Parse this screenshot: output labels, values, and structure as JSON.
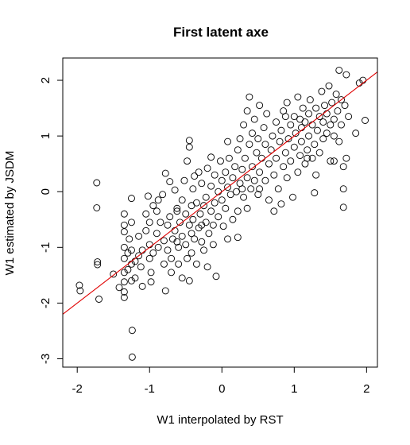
{
  "chart_data": {
    "type": "scatter",
    "title": "First latent axe",
    "xlabel": "W1 interpolated by RST",
    "ylabel": "W1 estimated by JSDM",
    "xlim": [
      -2.2,
      2.15
    ],
    "ylim": [
      -3.15,
      2.4
    ],
    "xticks": [
      -2,
      -1,
      0,
      1,
      2
    ],
    "yticks": [
      -3,
      -2,
      -1,
      0,
      1,
      2
    ],
    "xtick_labels": [
      "-2",
      "-1",
      "0",
      "1",
      "2"
    ],
    "ytick_labels": [
      "-3",
      "-2",
      "-1",
      "0",
      "1",
      "2"
    ],
    "fit_line": {
      "color": "#e00000",
      "intercept": 0.0,
      "slope": 1.0
    },
    "point_style": "open-circle",
    "points": [
      [
        -1.97,
        -1.68
      ],
      [
        -1.96,
        -1.78
      ],
      [
        -1.73,
        0.16
      ],
      [
        -1.73,
        -0.29
      ],
      [
        -1.72,
        -1.26
      ],
      [
        -1.72,
        -1.31
      ],
      [
        -1.7,
        -1.93
      ],
      [
        -1.5,
        -1.48
      ],
      [
        -1.42,
        -1.72
      ],
      [
        -1.35,
        -0.4
      ],
      [
        -1.35,
        -0.6
      ],
      [
        -1.35,
        -0.72
      ],
      [
        -1.35,
        -1.0
      ],
      [
        -1.35,
        -1.2
      ],
      [
        -1.35,
        -1.45
      ],
      [
        -1.35,
        -1.62
      ],
      [
        -1.35,
        -1.8
      ],
      [
        -1.35,
        -1.9
      ],
      [
        -1.25,
        -0.12
      ],
      [
        -1.25,
        -0.55
      ],
      [
        -1.25,
        -1.05
      ],
      [
        -1.25,
        -1.3
      ],
      [
        -1.25,
        -1.6
      ],
      [
        -1.24,
        -2.49
      ],
      [
        -1.24,
        -2.97
      ],
      [
        -1.28,
        -0.85
      ],
      [
        -1.3,
        -1.1
      ],
      [
        -1.3,
        -1.4
      ],
      [
        -1.2,
        -1.25
      ],
      [
        -1.2,
        -1.55
      ],
      [
        -1.15,
        -0.8
      ],
      [
        -1.15,
        -1.15
      ],
      [
        -1.12,
        -1.35
      ],
      [
        -1.1,
        -1.05
      ],
      [
        -1.1,
        -1.7
      ],
      [
        -1.05,
        -0.4
      ],
      [
        -1.05,
        -0.7
      ],
      [
        -1.02,
        -0.08
      ],
      [
        -1.0,
        -0.55
      ],
      [
        -1.0,
        -0.95
      ],
      [
        -1.0,
        -1.2
      ],
      [
        -0.98,
        -1.45
      ],
      [
        -0.98,
        -1.62
      ],
      [
        -0.95,
        -0.25
      ],
      [
        -0.95,
        -1.1
      ],
      [
        -0.9,
        -0.35
      ],
      [
        -0.9,
        -0.75
      ],
      [
        -0.88,
        -1.0
      ],
      [
        -0.85,
        -0.55
      ],
      [
        -0.82,
        -0.05
      ],
      [
        -0.8,
        -0.88
      ],
      [
        -0.8,
        -1.3
      ],
      [
        -0.78,
        -1.78
      ],
      [
        -0.78,
        0.33
      ],
      [
        -0.75,
        -0.6
      ],
      [
        -0.75,
        -1.05
      ],
      [
        -0.72,
        0.18
      ],
      [
        -0.72,
        -0.45
      ],
      [
        -0.7,
        -1.2
      ],
      [
        -0.7,
        -1.45
      ],
      [
        -0.68,
        -0.85
      ],
      [
        -0.65,
        0.03
      ],
      [
        -0.65,
        -0.7
      ],
      [
        -0.62,
        -0.35
      ],
      [
        -0.6,
        -1.0
      ],
      [
        -0.6,
        -1.3
      ],
      [
        -0.58,
        -0.55
      ],
      [
        -0.55,
        -0.15
      ],
      [
        -0.55,
        -0.8
      ],
      [
        -0.55,
        -1.55
      ],
      [
        -0.52,
        0.2
      ],
      [
        -0.5,
        -0.4
      ],
      [
        -0.5,
        -0.95
      ],
      [
        -0.48,
        -1.2
      ],
      [
        -0.45,
        -0.6
      ],
      [
        -0.45,
        -1.6
      ],
      [
        -0.42,
        -0.25
      ],
      [
        -0.42,
        -0.75
      ],
      [
        -0.42,
        -1.1
      ],
      [
        -0.4,
        0.05
      ],
      [
        -0.4,
        -0.5
      ],
      [
        -0.38,
        -0.85
      ],
      [
        -0.35,
        -0.2
      ],
      [
        -0.35,
        -1.3
      ],
      [
        -0.32,
        0.35
      ],
      [
        -0.32,
        -0.65
      ],
      [
        -0.3,
        -0.4
      ],
      [
        -0.28,
        -0.9
      ],
      [
        -0.28,
        0.15
      ],
      [
        -0.25,
        -0.25
      ],
      [
        -0.25,
        -1.05
      ],
      [
        -0.22,
        -0.55
      ],
      [
        -0.22,
        -0.1
      ],
      [
        -0.2,
        -1.35
      ],
      [
        -0.2,
        0.42
      ],
      [
        -0.18,
        -0.75
      ],
      [
        -0.15,
        -0.35
      ],
      [
        -0.15,
        0.1
      ],
      [
        -0.12,
        -0.6
      ],
      [
        -0.12,
        -0.95
      ],
      [
        -0.1,
        0.3
      ],
      [
        -0.1,
        -0.2
      ],
      [
        -0.08,
        -1.52
      ],
      [
        -0.05,
        0.0
      ],
      [
        -0.05,
        -0.45
      ],
      [
        -0.02,
        0.55
      ],
      [
        0.0,
        -0.15
      ],
      [
        0.0,
        0.2
      ],
      [
        0.02,
        -0.62
      ],
      [
        0.05,
        0.35
      ],
      [
        0.05,
        -0.3
      ],
      [
        0.08,
        0.08
      ],
      [
        0.08,
        -0.85
      ],
      [
        0.1,
        0.6
      ],
      [
        0.12,
        -0.05
      ],
      [
        0.15,
        0.25
      ],
      [
        0.15,
        -0.5
      ],
      [
        0.18,
        0.45
      ],
      [
        0.2,
        0.0
      ],
      [
        0.22,
        0.75
      ],
      [
        0.22,
        -0.35
      ],
      [
        0.25,
        0.15
      ],
      [
        0.25,
        0.95
      ],
      [
        0.28,
        0.4
      ],
      [
        0.3,
        -0.1
      ],
      [
        0.3,
        1.2
      ],
      [
        0.32,
        0.6
      ],
      [
        0.35,
        0.25
      ],
      [
        0.35,
        1.45
      ],
      [
        0.35,
        -0.3
      ],
      [
        0.38,
        0.85
      ],
      [
        0.38,
        1.7
      ],
      [
        0.4,
        0.05
      ],
      [
        0.42,
        1.05
      ],
      [
        0.42,
        0.45
      ],
      [
        0.45,
        1.3
      ],
      [
        0.45,
        0.2
      ],
      [
        0.48,
        0.7
      ],
      [
        0.5,
        -0.05
      ],
      [
        0.5,
        0.95
      ],
      [
        0.52,
        1.55
      ],
      [
        0.52,
        0.35
      ],
      [
        0.55,
        0.6
      ],
      [
        0.58,
        1.15
      ],
      [
        0.6,
        0.2
      ],
      [
        0.6,
        0.85
      ],
      [
        0.62,
        1.4
      ],
      [
        0.65,
        0.5
      ],
      [
        0.65,
        -0.15
      ],
      [
        0.68,
        0.75
      ],
      [
        0.7,
        1.0
      ],
      [
        0.72,
        0.3
      ],
      [
        0.75,
        1.25
      ],
      [
        0.75,
        0.6
      ],
      [
        0.78,
        0.05
      ],
      [
        0.8,
        0.9
      ],
      [
        0.82,
        1.1
      ],
      [
        0.85,
        0.45
      ],
      [
        0.85,
        1.45
      ],
      [
        0.88,
        0.7
      ],
      [
        0.9,
        0.25
      ],
      [
        0.9,
        1.6
      ],
      [
        0.92,
        0.95
      ],
      [
        0.95,
        1.2
      ],
      [
        0.95,
        0.55
      ],
      [
        0.98,
        -0.1
      ],
      [
        1.0,
        0.8
      ],
      [
        1.0,
        1.35
      ],
      [
        1.02,
        1.05
      ],
      [
        1.05,
        0.35
      ],
      [
        1.05,
        1.7
      ],
      [
        1.08,
        0.65
      ],
      [
        1.1,
        1.15
      ],
      [
        1.1,
        0.9
      ],
      [
        1.12,
        1.5
      ],
      [
        1.15,
        0.5
      ],
      [
        1.15,
        1.25
      ],
      [
        1.18,
        0.75
      ],
      [
        1.2,
        1.4
      ],
      [
        1.2,
        1.0
      ],
      [
        1.22,
        1.65
      ],
      [
        1.25,
        0.6
      ],
      [
        1.25,
        1.2
      ],
      [
        1.28,
        0.85
      ],
      [
        1.3,
        1.5
      ],
      [
        1.3,
        0.3
      ],
      [
        1.32,
        1.1
      ],
      [
        1.35,
        1.35
      ],
      [
        1.35,
        0.7
      ],
      [
        1.38,
        1.8
      ],
      [
        1.4,
        1.25
      ],
      [
        1.4,
        0.95
      ],
      [
        1.42,
        1.55
      ],
      [
        1.45,
        1.05
      ],
      [
        1.45,
        1.4
      ],
      [
        1.48,
        1.9
      ],
      [
        1.5,
        1.2
      ],
      [
        1.5,
        0.55
      ],
      [
        1.52,
        1.6
      ],
      [
        1.55,
        1.3
      ],
      [
        1.55,
        1.0
      ],
      [
        1.58,
        1.75
      ],
      [
        1.6,
        1.45
      ],
      [
        1.62,
        0.9
      ],
      [
        1.62,
        2.18
      ],
      [
        1.65,
        1.2
      ],
      [
        1.65,
        1.65
      ],
      [
        1.68,
        0.45
      ],
      [
        1.68,
        -0.28
      ],
      [
        1.68,
        0.05
      ],
      [
        1.7,
        1.55
      ],
      [
        1.72,
        2.1
      ],
      [
        1.72,
        0.6
      ],
      [
        1.75,
        1.35
      ],
      [
        1.85,
        1.05
      ],
      [
        1.9,
        1.95
      ],
      [
        1.95,
        2.0
      ],
      [
        1.98,
        1.28
      ],
      [
        -0.88,
        -0.15
      ],
      [
        -0.62,
        -0.9
      ],
      [
        -0.48,
        0.55
      ],
      [
        -0.45,
        0.8
      ],
      [
        -0.45,
        0.92
      ],
      [
        -0.38,
        0.28
      ],
      [
        -0.15,
        0.62
      ],
      [
        0.08,
        0.9
      ],
      [
        0.22,
        -0.82
      ],
      [
        0.52,
        0.05
      ],
      [
        0.72,
        -0.35
      ],
      [
        0.82,
        -0.22
      ],
      [
        1.18,
        0.6
      ],
      [
        1.28,
        -0.02
      ],
      [
        1.55,
        0.55
      ],
      [
        1.08,
        1.3
      ],
      [
        0.88,
        1.35
      ],
      [
        0.28,
        0.05
      ],
      [
        -0.62,
        -0.3
      ],
      [
        -0.28,
        -0.6
      ]
    ]
  }
}
